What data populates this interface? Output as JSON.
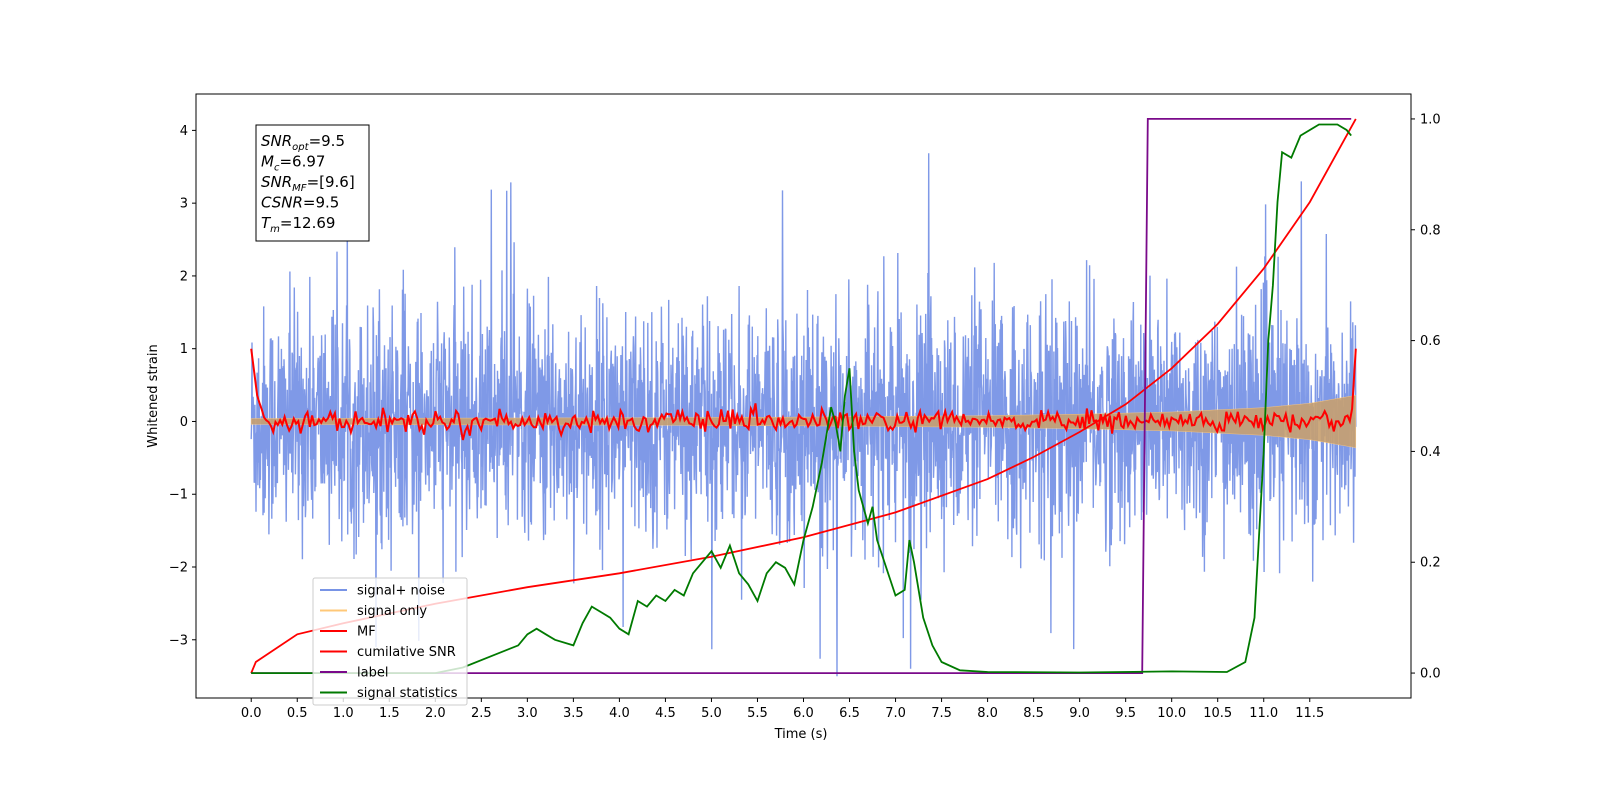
{
  "chart_data": {
    "type": "line",
    "xlabel": "Time (s)",
    "ylabel": "Whitened strain",
    "xlim": [
      -0.6,
      12.6
    ],
    "ylim": [
      -3.8,
      4.5
    ],
    "y2lim": [
      -0.045,
      1.045
    ],
    "xticks": [
      "0.0",
      "0.5",
      "1.0",
      "1.5",
      "2.0",
      "2.5",
      "3.0",
      "3.5",
      "4.0",
      "4.5",
      "5.0",
      "5.5",
      "6.0",
      "6.5",
      "7.0",
      "7.5",
      "8.0",
      "8.5",
      "9.0",
      "9.5",
      "10.0",
      "10.5",
      "11.0",
      "11.5"
    ],
    "yticks": [
      "−3",
      "−2",
      "−1",
      "0",
      "1",
      "2",
      "3",
      "4"
    ],
    "y2ticks": [
      "0.0",
      "0.2",
      "0.4",
      "0.6",
      "0.8",
      "1.0"
    ],
    "legend_position": "lower left",
    "annotation": [
      {
        "main": "SNR",
        "sub": "opt",
        "rest": "=9.5"
      },
      {
        "main": "M",
        "sub": "c",
        "rest": "=6.97"
      },
      {
        "main": "SNR",
        "sub": "MF",
        "rest": "=[9.6]"
      },
      {
        "main": "CSNR",
        "sub": "",
        "rest": "=9.5"
      },
      {
        "main": "T",
        "sub": "m",
        "rest": "=12.69"
      }
    ],
    "series": [
      {
        "name": "signal+ noise",
        "color": "#7894e6",
        "axis": "left",
        "description": "noise band roughly between -2.2 and 2.6 over 0-12 s, with sparse spikes up to 4.15 and down to -3.5"
      },
      {
        "name": "signal only",
        "color": "#ffc878",
        "axis": "left",
        "envelope": {
          "x": [
            0,
            2,
            4,
            6,
            8,
            9,
            10,
            11,
            11.5,
            12.0
          ],
          "amplitude": [
            0.04,
            0.045,
            0.05,
            0.06,
            0.08,
            0.1,
            0.13,
            0.19,
            0.25,
            0.36
          ]
        }
      },
      {
        "name": "MF",
        "color": "#ff0000",
        "axis": "left",
        "description": "matched filter output around 0 with jitter ±0.15, starts at 1.0 at t=0 and rises to 1.0 at t=12"
      },
      {
        "name": "cumilative SNR",
        "color": "#ff0000",
        "axis": "right",
        "x": [
          0.0,
          0.05,
          0.5,
          1.0,
          2.0,
          3.0,
          4.0,
          5.0,
          6.0,
          7.0,
          8.0,
          8.5,
          9.0,
          9.5,
          10.0,
          10.5,
          11.0,
          11.5,
          12.0
        ],
        "y": [
          0.0,
          0.02,
          0.07,
          0.09,
          0.125,
          0.155,
          0.18,
          0.21,
          0.245,
          0.29,
          0.35,
          0.39,
          0.435,
          0.485,
          0.55,
          0.63,
          0.73,
          0.85,
          1.0
        ]
      },
      {
        "name": "label",
        "color": "#7a0a8a",
        "axis": "right",
        "x": [
          0.0,
          9.68,
          9.74,
          11.95
        ],
        "y": [
          0.0,
          0.0,
          1.0,
          1.0
        ]
      },
      {
        "name": "signal statistics",
        "color": "#007a00",
        "axis": "right",
        "x": [
          0.0,
          1.0,
          2.0,
          2.3,
          2.6,
          2.9,
          3.0,
          3.1,
          3.2,
          3.3,
          3.5,
          3.6,
          3.7,
          3.8,
          3.9,
          4.0,
          4.1,
          4.2,
          4.3,
          4.4,
          4.5,
          4.6,
          4.7,
          4.8,
          4.9,
          5.0,
          5.1,
          5.2,
          5.3,
          5.4,
          5.5,
          5.6,
          5.7,
          5.8,
          5.9,
          6.0,
          6.1,
          6.2,
          6.3,
          6.35,
          6.4,
          6.45,
          6.5,
          6.55,
          6.6,
          6.7,
          6.75,
          6.8,
          6.9,
          7.0,
          7.1,
          7.15,
          7.2,
          7.3,
          7.4,
          7.5,
          7.7,
          8.0,
          9.0,
          10.0,
          10.6,
          10.8,
          10.9,
          11.0,
          11.05,
          11.1,
          11.15,
          11.2,
          11.3,
          11.4,
          11.6,
          11.8,
          11.9,
          11.95
        ],
        "y": [
          0.0,
          0.0,
          0.0,
          0.01,
          0.03,
          0.05,
          0.07,
          0.08,
          0.07,
          0.06,
          0.05,
          0.09,
          0.12,
          0.11,
          0.1,
          0.08,
          0.07,
          0.13,
          0.12,
          0.14,
          0.13,
          0.15,
          0.14,
          0.18,
          0.2,
          0.22,
          0.19,
          0.23,
          0.18,
          0.16,
          0.13,
          0.18,
          0.2,
          0.19,
          0.16,
          0.24,
          0.3,
          0.38,
          0.48,
          0.45,
          0.4,
          0.5,
          0.55,
          0.4,
          0.33,
          0.27,
          0.3,
          0.24,
          0.19,
          0.14,
          0.15,
          0.24,
          0.2,
          0.1,
          0.05,
          0.02,
          0.005,
          0.002,
          0.001,
          0.003,
          0.002,
          0.02,
          0.1,
          0.4,
          0.6,
          0.7,
          0.85,
          0.94,
          0.93,
          0.97,
          0.99,
          0.99,
          0.98,
          0.97
        ]
      }
    ]
  }
}
